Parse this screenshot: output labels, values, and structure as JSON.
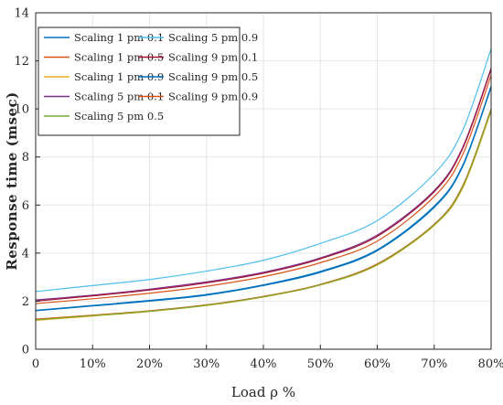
{
  "chart_data": {
    "type": "line",
    "title": "",
    "xlabel": "Load ρ %",
    "ylabel": "Response time (msec)",
    "xlim": [
      0,
      80
    ],
    "ylim": [
      0,
      14
    ],
    "xticks": [
      0,
      10,
      20,
      30,
      40,
      50,
      60,
      70,
      80
    ],
    "xtick_labels": [
      "0",
      "10%",
      "20%",
      "30%",
      "40%",
      "50%",
      "60%",
      "70%",
      "80%"
    ],
    "yticks": [
      0,
      2,
      4,
      6,
      8,
      10,
      12,
      14
    ],
    "ytick_labels": [
      "0",
      "2",
      "4",
      "6",
      "8",
      "10",
      "12",
      "14"
    ],
    "grid": true,
    "legend_position": "top-left",
    "x": [
      0,
      10,
      20,
      30,
      40,
      50,
      60,
      70,
      75,
      80
    ],
    "series": [
      {
        "name": "Scaling 1 pm 0.1",
        "color": "#0072bd",
        "values": [
          1.6,
          1.8,
          2.0,
          2.25,
          2.65,
          3.2,
          4.1,
          5.9,
          7.6,
          10.9
        ]
      },
      {
        "name": "Scaling 1 pm 0.5",
        "color": "#d95319",
        "values": [
          1.25,
          1.42,
          1.6,
          1.85,
          2.2,
          2.7,
          3.55,
          5.2,
          6.8,
          10.0
        ]
      },
      {
        "name": "Scaling 1 pm 0.9",
        "color": "#edb120",
        "values": [
          1.2,
          1.38,
          1.57,
          1.82,
          2.17,
          2.67,
          3.5,
          5.15,
          6.7,
          9.9
        ]
      },
      {
        "name": "Scaling 5 pm 0.1",
        "color": "#7e2f8e",
        "values": [
          2.05,
          2.25,
          2.5,
          2.8,
          3.2,
          3.8,
          4.75,
          6.6,
          8.4,
          11.7
        ]
      },
      {
        "name": "Scaling 5 pm 0.5",
        "color": "#77ac30",
        "values": [
          1.22,
          1.4,
          1.58,
          1.83,
          2.18,
          2.68,
          3.52,
          5.17,
          6.75,
          9.95
        ]
      },
      {
        "name": "Scaling 5 pm 0.9",
        "color": "#4dbeee",
        "values": [
          2.4,
          2.65,
          2.9,
          3.25,
          3.7,
          4.4,
          5.35,
          7.3,
          9.1,
          12.5
        ]
      },
      {
        "name": "Scaling 9 pm 0.1",
        "color": "#a2142f",
        "values": [
          2.0,
          2.22,
          2.46,
          2.76,
          3.16,
          3.76,
          4.7,
          6.55,
          8.35,
          11.65
        ]
      },
      {
        "name": "Scaling 9 pm 0.5",
        "color": "#0072bd",
        "values": [
          1.62,
          1.82,
          2.03,
          2.28,
          2.68,
          3.24,
          4.14,
          5.95,
          7.65,
          10.95
        ]
      },
      {
        "name": "Scaling 9 pm 0.9",
        "color": "#d95319",
        "values": [
          1.9,
          2.1,
          2.33,
          2.62,
          3.02,
          3.6,
          4.5,
          6.35,
          8.1,
          11.4
        ]
      }
    ]
  }
}
